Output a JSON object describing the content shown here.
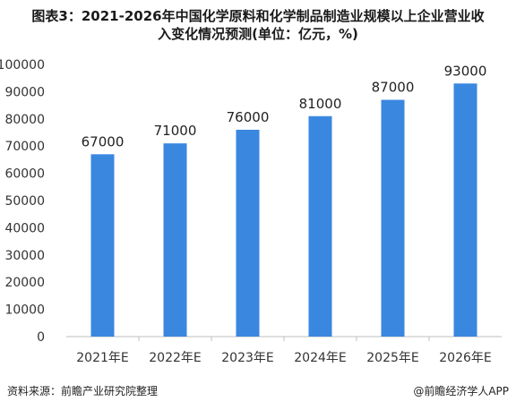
{
  "title_line1": "图表3：2021-2026年中国化学原料和化学制品制造业规模以上企业营业收",
  "title_line2": "入变化情况预测(单位：亿元，%)",
  "source": "资料来源：前瞻产业研究院整理",
  "brand": "@前瞻经济学人APP",
  "bar_color": "#3a87e0",
  "chart_data": {
    "type": "bar",
    "categories": [
      "2021年E",
      "2022年E",
      "2023年E",
      "2024年E",
      "2025年E",
      "2026年E"
    ],
    "values": [
      67000,
      71000,
      76000,
      81000,
      87000,
      93000
    ],
    "ylim": [
      0,
      100000
    ],
    "yticks": [
      0,
      10000,
      20000,
      30000,
      40000,
      50000,
      60000,
      70000,
      80000,
      90000,
      100000
    ],
    "xlabel": "",
    "ylabel": "",
    "grid": false,
    "data_labels": true
  }
}
